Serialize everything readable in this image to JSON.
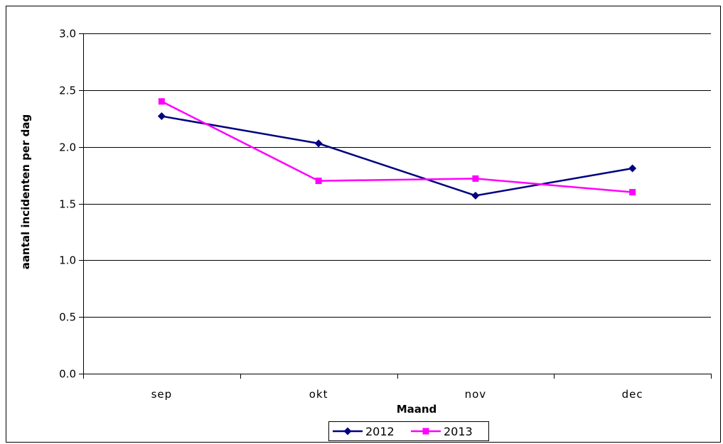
{
  "chart_data": {
    "type": "line",
    "categories": [
      "sep",
      "okt",
      "nov",
      "dec"
    ],
    "series": [
      {
        "name": "2012",
        "values": [
          2.27,
          2.03,
          1.57,
          1.81
        ],
        "color": "#000080",
        "marker": "diamond"
      },
      {
        "name": "2013",
        "values": [
          2.4,
          1.7,
          1.72,
          1.6
        ],
        "color": "#FF00FF",
        "marker": "square"
      }
    ],
    "xlabel": "Maand",
    "ylabel": "aantal incidenten per dag",
    "ylim": [
      0,
      3
    ],
    "yticks": [
      "0.0",
      "0.5",
      "1.0",
      "1.5",
      "2.0",
      "2.5",
      "3.0"
    ],
    "grid": "horizontal",
    "legend": "bottom",
    "colors": {
      "background": "#FFFFFF",
      "gridline": "#000000",
      "axis": "#000000"
    }
  }
}
